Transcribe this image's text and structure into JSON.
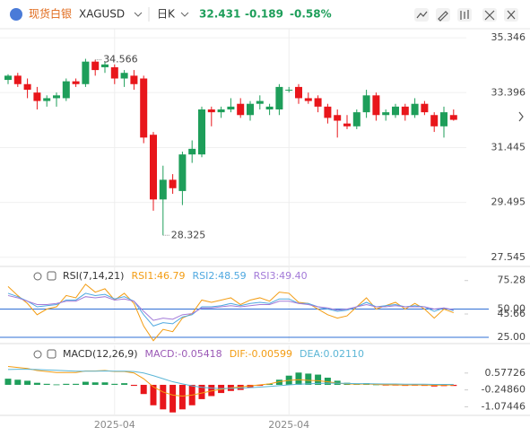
{
  "header": {
    "name": "现货白银",
    "symbol": "XAGUSD",
    "period": "日K",
    "price": "32.431",
    "change": "-0.189",
    "change_pct": "-0.58%"
  },
  "chart_data": [
    {
      "type": "candlestick",
      "up_color": "#1e9e5a",
      "down_color": "#e8161b",
      "ylim": [
        27.25,
        35.67
      ],
      "yticks": [
        35.346,
        33.396,
        31.445,
        29.495,
        27.545
      ],
      "grid": true,
      "categories": [
        null,
        null,
        null,
        null,
        null,
        null,
        null,
        null,
        null,
        null,
        null,
        "2025-04",
        null,
        null,
        null,
        null,
        null,
        null,
        null,
        null,
        null,
        null,
        null,
        null,
        null,
        null,
        null,
        null,
        null,
        "2025-04",
        null,
        null,
        null,
        null,
        null,
        null,
        null,
        null,
        null,
        null,
        null,
        null,
        null,
        null,
        null,
        null,
        null
      ],
      "open": [
        33.85,
        34.0,
        33.7,
        33.4,
        33.1,
        33.2,
        33.2,
        33.8,
        33.7,
        34.5,
        34.3,
        34.3,
        33.9,
        34.0,
        33.9,
        31.9,
        29.6,
        30.3,
        29.9,
        31.2,
        31.2,
        32.8,
        32.7,
        32.8,
        33.0,
        32.6,
        33.0,
        32.8,
        32.8,
        33.5,
        33.6,
        33.2,
        33.2,
        32.9,
        32.6,
        32.3,
        32.2,
        32.7,
        33.3,
        32.6,
        32.6,
        32.9,
        32.6,
        33.0,
        32.6,
        32.2,
        32.6
      ],
      "high": [
        34.05,
        34.1,
        33.9,
        33.6,
        33.3,
        33.4,
        33.9,
        33.9,
        34.6,
        34.566,
        34.5,
        34.4,
        34.2,
        34.2,
        34.0,
        32.0,
        30.8,
        30.5,
        31.3,
        31.7,
        32.9,
        32.9,
        32.9,
        33.2,
        33.2,
        33.1,
        33.3,
        33.0,
        33.7,
        33.6,
        33.7,
        33.4,
        33.3,
        33.0,
        32.8,
        32.6,
        32.8,
        33.5,
        33.4,
        32.8,
        33.0,
        33.0,
        33.2,
        33.1,
        32.7,
        32.9,
        32.8
      ],
      "low": [
        33.7,
        33.6,
        33.2,
        32.8,
        32.9,
        32.9,
        33.1,
        33.6,
        33.6,
        34.0,
        34.1,
        33.7,
        33.6,
        33.5,
        31.6,
        29.2,
        28.325,
        29.8,
        29.4,
        30.9,
        31.1,
        32.2,
        32.5,
        32.7,
        32.5,
        32.4,
        32.8,
        32.6,
        32.6,
        33.4,
        33.0,
        33.0,
        32.7,
        32.3,
        31.8,
        32.1,
        32.1,
        32.5,
        32.4,
        32.4,
        32.5,
        32.4,
        32.5,
        32.6,
        32.0,
        31.8,
        32.4
      ],
      "close": [
        34.0,
        33.7,
        33.5,
        33.1,
        33.2,
        33.3,
        33.8,
        33.7,
        34.5,
        34.2,
        34.4,
        33.9,
        34.1,
        33.7,
        31.8,
        29.6,
        30.3,
        30.0,
        31.2,
        31.4,
        32.8,
        32.7,
        32.8,
        32.9,
        32.6,
        33.0,
        33.1,
        32.9,
        33.6,
        33.5,
        33.2,
        33.1,
        32.9,
        32.5,
        32.4,
        32.2,
        32.7,
        33.3,
        32.6,
        32.7,
        32.9,
        32.6,
        33.0,
        32.7,
        32.2,
        32.7,
        32.431
      ],
      "annotations": [
        {
          "index": 9,
          "field": "high"
        },
        {
          "index": 16,
          "field": "low"
        }
      ]
    },
    {
      "type": "line",
      "title": "RSI(7,14,21)",
      "ylim": [
        21,
        87
      ],
      "yticks": [
        75.28,
        {
          "value": 50,
          "label": "50.00"
        },
        45.66,
        {
          "value": 25,
          "label": "25.00"
        }
      ],
      "ref_lines": [
        50,
        25
      ],
      "ref_color": "#2f6fd6",
      "series": [
        {
          "name": "RSI1:46.79",
          "color": "#f39c12",
          "values": [
            70,
            62,
            55,
            45,
            50,
            52,
            62,
            60,
            72,
            65,
            68,
            58,
            64,
            55,
            35,
            22,
            32,
            30,
            42,
            46,
            58,
            56,
            58,
            60,
            54,
            58,
            60,
            57,
            65,
            64,
            56,
            55,
            50,
            45,
            42,
            44,
            52,
            60,
            50,
            53,
            56,
            50,
            55,
            50,
            42,
            50,
            46.79
          ]
        },
        {
          "name": "RSI2:48.59",
          "color": "#4fa8e0",
          "values": [
            64,
            61,
            57,
            52,
            53,
            54,
            58,
            58,
            64,
            62,
            63,
            59,
            61,
            57,
            45,
            35,
            38,
            37,
            43,
            45,
            52,
            52,
            53,
            55,
            53,
            55,
            56,
            55,
            59,
            59,
            55,
            55,
            52,
            50,
            48,
            49,
            52,
            56,
            52,
            53,
            54,
            52,
            53,
            52,
            48,
            51,
            48.59
          ]
        },
        {
          "name": "RSI3:49.40",
          "color": "#a37ad8",
          "values": [
            62,
            60,
            57,
            54,
            54,
            55,
            57,
            57,
            61,
            60,
            61,
            58,
            59,
            57,
            48,
            40,
            42,
            41,
            45,
            46,
            51,
            51,
            52,
            53,
            52,
            53,
            54,
            54,
            57,
            57,
            55,
            54,
            52,
            51,
            49,
            50,
            52,
            54,
            52,
            52,
            53,
            52,
            52,
            52,
            50,
            51,
            49.4
          ]
        }
      ]
    },
    {
      "type": "combo",
      "title": "MACD(12,26,9)",
      "ylim": [
        -1.45,
        1.93
      ],
      "yticks": [
        0.57726,
        -0.2486,
        -1.07446
      ],
      "ytick_labels": [
        "0.57726",
        "-0.24860",
        "-1.07446"
      ],
      "series": [
        {
          "name": "MACD:-0.05418",
          "kind": "bar",
          "color": "#9b59b6",
          "up_color": "#1e9e5a",
          "down_color": "#e8161b",
          "values": [
            0.3,
            0.25,
            0.2,
            0.1,
            0.05,
            0.02,
            0.05,
            0.05,
            0.15,
            0.12,
            0.12,
            0.05,
            0.08,
            -0.05,
            -0.45,
            -1.0,
            -1.2,
            -1.35,
            -1.2,
            -1.0,
            -0.7,
            -0.55,
            -0.4,
            -0.3,
            -0.25,
            -0.15,
            -0.05,
            0.05,
            0.25,
            0.45,
            0.6,
            0.55,
            0.5,
            0.35,
            0.2,
            0.1,
            0.05,
            0.08,
            0.02,
            -0.02,
            -0.03,
            -0.05,
            -0.04,
            -0.05,
            -0.08,
            -0.06,
            -0.05418
          ]
        },
        {
          "name": "DIF:-0.00599",
          "kind": "line",
          "color": "#f39c12",
          "values": [
            0.9,
            0.85,
            0.8,
            0.7,
            0.65,
            0.6,
            0.6,
            0.6,
            0.68,
            0.68,
            0.7,
            0.65,
            0.65,
            0.58,
            0.3,
            -0.1,
            -0.35,
            -0.5,
            -0.55,
            -0.5,
            -0.4,
            -0.3,
            -0.22,
            -0.15,
            -0.1,
            -0.05,
            0,
            0.05,
            0.15,
            0.22,
            0.25,
            0.22,
            0.2,
            0.15,
            0.08,
            0.05,
            0.03,
            0.04,
            0.02,
            0,
            0,
            -0.01,
            0,
            -0.01,
            -0.02,
            -0.01,
            -0.00599
          ]
        },
        {
          "name": "DEA:0.02110",
          "kind": "line",
          "color": "#5bb6d6",
          "values": [
            0.75,
            0.76,
            0.76,
            0.75,
            0.73,
            0.71,
            0.69,
            0.67,
            0.67,
            0.67,
            0.68,
            0.67,
            0.67,
            0.65,
            0.58,
            0.45,
            0.3,
            0.15,
            0.05,
            -0.05,
            -0.12,
            -0.16,
            -0.18,
            -0.17,
            -0.16,
            -0.14,
            -0.11,
            -0.08,
            -0.04,
            0,
            0.03,
            0.05,
            0.07,
            0.08,
            0.08,
            0.07,
            0.06,
            0.06,
            0.05,
            0.04,
            0.04,
            0.03,
            0.03,
            0.03,
            0.02,
            0.02,
            0.0211
          ]
        }
      ]
    }
  ]
}
